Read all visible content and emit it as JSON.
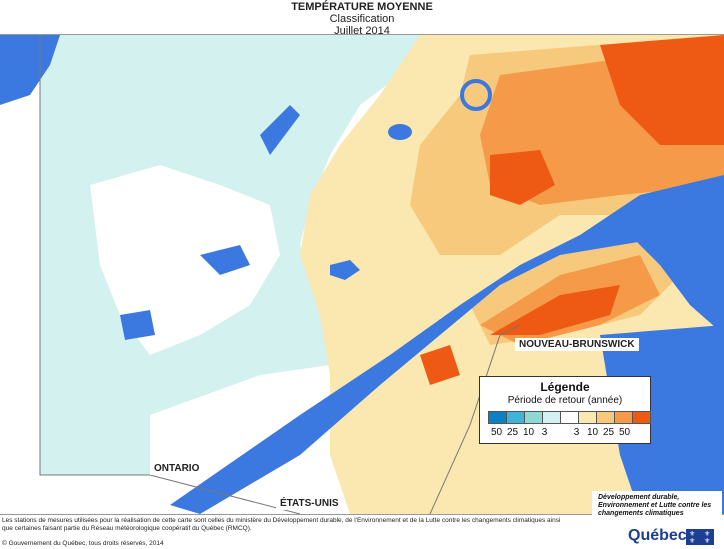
{
  "title": "TEMPÉRATURE MOYENNE",
  "subtitle": "Classification",
  "period": "Juillet 2014",
  "labels": {
    "nouveau_brunswick": "NOUVEAU-BRUNSWICK",
    "ontario": "ONTARIO",
    "etats_unis": "ÉTATS-UNIS"
  },
  "legend": {
    "title": "Légende",
    "subtitle": "Période de retour (année)",
    "classes": [
      {
        "label": "50",
        "color": "#0d7fc4"
      },
      {
        "label": "25",
        "color": "#3fb3d8"
      },
      {
        "label": "10",
        "color": "#8fd9d4"
      },
      {
        "label": "3",
        "color": "#d3f1ee"
      },
      {
        "label": "",
        "color": "#ffffff"
      },
      {
        "label": "3",
        "color": "#fbe8b0"
      },
      {
        "label": "10",
        "color": "#f7c97c"
      },
      {
        "label": "25",
        "color": "#f59a48"
      },
      {
        "label": "50",
        "color": "#ee5a14"
      }
    ]
  },
  "footer": "Les stations de mesures utilisées pour la réalisation de cette carte sont celles du ministère du Développement durable, de l'Environnement et de la Lutte contre les changements climatiques ainsi que certaines faisant partie du Réseau météorologique coopératif du Québec (RMCQ).",
  "copyright": "© Gouvernement du Québec, tous droits réservés, 2014",
  "ministry": "Développement durable, Environnement et Lutte contre les changements climatiques",
  "logo_text": "Québec",
  "colors": {
    "water": "#3b78e0",
    "land_outside": "#ffffff",
    "cool_light": "#d3f1ee",
    "warm_light": "#fbe8b0",
    "warm_mid": "#f7c97c",
    "warm_high": "#f59a48",
    "warm_max": "#ee5a14"
  }
}
